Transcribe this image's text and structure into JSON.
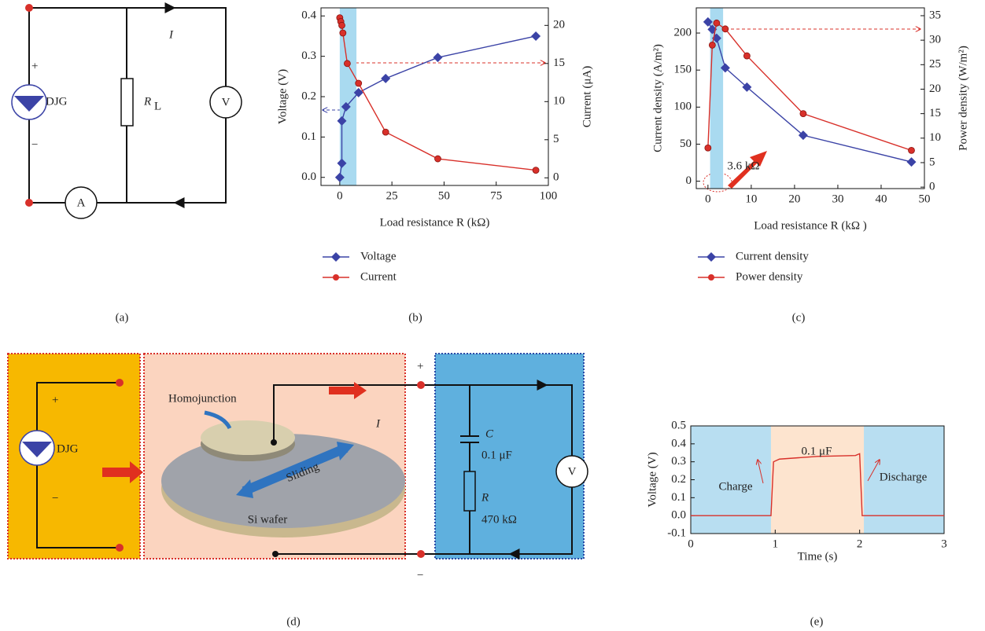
{
  "chart_data": [
    {
      "type": "line",
      "xlabel": "Load resistance R (kΩ)",
      "ylabel": "Voltage (V)",
      "y2label": "Current (μA)",
      "xlim": [
        -9,
        100
      ],
      "xticks": [
        0,
        25,
        50,
        75,
        100
      ],
      "ylim": [
        -0.02,
        0.42
      ],
      "yticks": [
        {
          "value": 0,
          "label": "0.0"
        },
        0.1,
        0.2,
        0.3,
        0.4
      ],
      "y2lim": [
        -1,
        22.3
      ],
      "y2ticks": [
        0,
        5,
        10,
        15,
        20
      ],
      "highlight": [
        0,
        8
      ],
      "highlight_color": "#a9daf0",
      "legend": "below",
      "series": [
        {
          "name": "Voltage",
          "color": "#3b43a6",
          "marker": "diamond",
          "x": [
            0,
            1,
            1,
            3,
            9,
            22,
            47,
            94
          ],
          "values": [
            0,
            0.035,
            0.14,
            0.175,
            0.21,
            0.245,
            0.297,
            0.35
          ]
        },
        {
          "name": "Current",
          "color": "#d8302a",
          "marker": "circle",
          "axis": "y2",
          "x": [
            0,
            0.5,
            1,
            1.5,
            3.6,
            9,
            22,
            47,
            94
          ],
          "values": [
            21,
            20.5,
            20,
            19,
            15,
            12.4,
            6,
            2.5,
            1
          ]
        }
      ]
    },
    {
      "type": "line",
      "xlabel": "Load resistance R (kΩ )",
      "ylabel": "Current density (A/m²)",
      "y2label": "Power density (W/m²)",
      "xlim": [
        -2.7,
        50
      ],
      "xticks": [
        0,
        10,
        20,
        30,
        40,
        50
      ],
      "ylim": [
        -10,
        234
      ],
      "yticks": [
        0,
        50,
        100,
        150,
        200
      ],
      "y2lim": [
        -0.3,
        36.6
      ],
      "y2ticks": [
        0,
        5,
        10,
        15,
        20,
        25,
        30,
        35
      ],
      "highlight": [
        0.5,
        3.5
      ],
      "highlight_color": "#a9daf0",
      "legend": "below",
      "annotations": [
        "3.6 kΩ"
      ],
      "series": [
        {
          "name": "Current density",
          "color": "#3b43a6",
          "marker": "diamond",
          "x": [
            0,
            1,
            2,
            4,
            9,
            22,
            47
          ],
          "values": [
            215,
            205,
            193,
            153,
            127,
            62,
            26
          ]
        },
        {
          "name": "Power density",
          "color": "#d8302a",
          "marker": "circle",
          "axis": "y2",
          "x": [
            0,
            1,
            2,
            4,
            9,
            22,
            47
          ],
          "values": [
            8,
            29,
            33.5,
            32.3,
            26.8,
            15,
            7.5
          ]
        }
      ]
    },
    {
      "type": "line",
      "xlabel": "Time (s)",
      "ylabel": "Voltage (V)",
      "xlim": [
        0,
        3
      ],
      "xticks": [
        0,
        1,
        2,
        3
      ],
      "ylim": [
        -0.1,
        0.5
      ],
      "yticks": [
        -0.1,
        {
          "value": 0,
          "label": "0.0"
        },
        0.1,
        0.2,
        0.3,
        0.4,
        0.5
      ],
      "regions": [
        {
          "x": [
            0,
            0.95
          ],
          "color": "#b8def1"
        },
        {
          "x": [
            0.95,
            2.05
          ],
          "color": "#fde4cf"
        },
        {
          "x": [
            2.05,
            3
          ],
          "color": "#b8def1"
        }
      ],
      "annotations": [
        "0.1 μF",
        "Charge",
        "Discharge"
      ],
      "series": [
        {
          "color": "#d8302a",
          "marker": "none",
          "x": [
            0,
            0.95,
            0.98,
            1.05,
            1.5,
            1.95,
            2.0,
            2.03,
            3
          ],
          "values": [
            0,
            0,
            0.3,
            0.315,
            0.33,
            0.335,
            0.345,
            0,
            0
          ]
        }
      ]
    }
  ],
  "circuit_a": {
    "plus": "+",
    "minus": "−",
    "source": "DJG",
    "current": "I",
    "resistor": "R",
    "resistor_sub": "L",
    "voltmeter": "V",
    "ammeter": "A"
  },
  "panel_d": {
    "plus": "+",
    "minus": "−",
    "source": "DJG",
    "homojunction": "Homojunction",
    "current": "I",
    "sliding": "Sliding",
    "substrate": "Si wafer",
    "capacitor": "C",
    "capacitance": "0.1 μF",
    "resistor": "R",
    "resistance": "470 kΩ",
    "voltmeter": "V",
    "out_plus": "+",
    "out_minus": "−"
  },
  "panel_labels": [
    "(a)",
    "(b)",
    "(c)",
    "(d)",
    "(e)"
  ]
}
